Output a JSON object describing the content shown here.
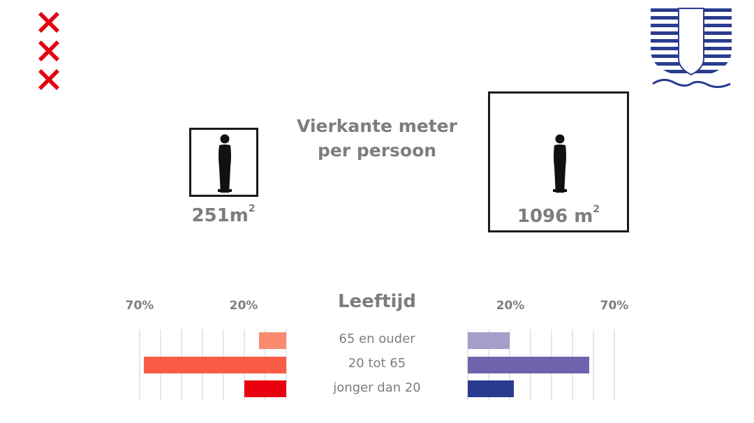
{
  "title_line1": "Vierkante meter",
  "title_line2": "per persoon",
  "left_area": {
    "value": "251",
    "unit": "m",
    "sup": "2"
  },
  "right_area": {
    "value": "1096",
    "unit": " m",
    "sup": "2"
  },
  "age_title": "Leeftijd",
  "chart_data": {
    "type": "bar",
    "orientation": "horizontal",
    "layout": "mirrored",
    "title": "Leeftijd",
    "categories": [
      "65 en ouder",
      "20 tot 65",
      "jonger dan 20"
    ],
    "series": [
      {
        "values": [
          13,
          68,
          20
        ],
        "colors": [
          "#fb8a73",
          "#fa5b47",
          "#e8000e"
        ]
      },
      {
        "values": [
          20,
          58,
          22
        ],
        "colors": [
          "#a69dc9",
          "#6e63ad",
          "#2a3b8f"
        ]
      }
    ],
    "tick_labels": [
      "70%",
      "20%"
    ],
    "xlim": [
      0,
      70
    ],
    "grid": true
  }
}
